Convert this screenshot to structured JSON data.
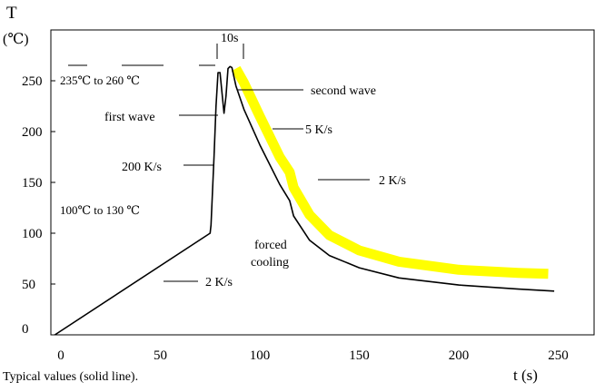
{
  "chart_data": {
    "type": "line",
    "ylabel": "T",
    "ylabel_unit": "(℃)",
    "xlabel": "t (s)",
    "caption": "Typical values (solid line).",
    "xlim": [
      0,
      250
    ],
    "ylim": [
      0,
      265
    ],
    "x_ticks": [
      0,
      50,
      100,
      150,
      200,
      250
    ],
    "y_ticks": [
      0,
      50,
      100,
      150,
      200,
      250
    ],
    "grid": false,
    "series": [
      {
        "style": "solid",
        "color": "#000000",
        "points": [
          [
            -3,
            0
          ],
          [
            75,
            100
          ],
          [
            75.5,
            108
          ],
          [
            77,
            175
          ],
          [
            78,
            225
          ],
          [
            79,
            258
          ],
          [
            80,
            258
          ],
          [
            82,
            218
          ],
          [
            83,
            235
          ],
          [
            84,
            262
          ],
          [
            85,
            264
          ],
          [
            86,
            263
          ],
          [
            88,
            245
          ],
          [
            92,
            222
          ],
          [
            100,
            187
          ],
          [
            110,
            148
          ],
          [
            115,
            132
          ],
          [
            117,
            117
          ],
          [
            125,
            93
          ],
          [
            135,
            78
          ],
          [
            150,
            66
          ],
          [
            170,
            56
          ],
          [
            200,
            49
          ],
          [
            230,
            45
          ],
          [
            248,
            43
          ]
        ]
      },
      {
        "style": "band",
        "color": "#ffff00",
        "points": [
          [
            88,
            262
          ],
          [
            92,
            248
          ],
          [
            100,
            215
          ],
          [
            110,
            175
          ],
          [
            115,
            160
          ],
          [
            117,
            145
          ],
          [
            125,
            118
          ],
          [
            135,
            98
          ],
          [
            150,
            83
          ],
          [
            170,
            72
          ],
          [
            200,
            64
          ],
          [
            230,
            61
          ],
          [
            245,
            60
          ]
        ]
      }
    ],
    "annotations": {
      "peak_range": "235℃   to 260 ℃",
      "dwell": "10s",
      "second_wave": "second wave",
      "first_wave": "first wave",
      "cool_rate_1": "5 K/s",
      "heat_rate": "200 K/s",
      "cool_rate_2": "2 K/s",
      "preheat_range": "100℃   to 130 ℃",
      "forced_cooling_1": "forced",
      "forced_cooling_2": "cooling",
      "preheat_rate": "2 K/s"
    }
  }
}
